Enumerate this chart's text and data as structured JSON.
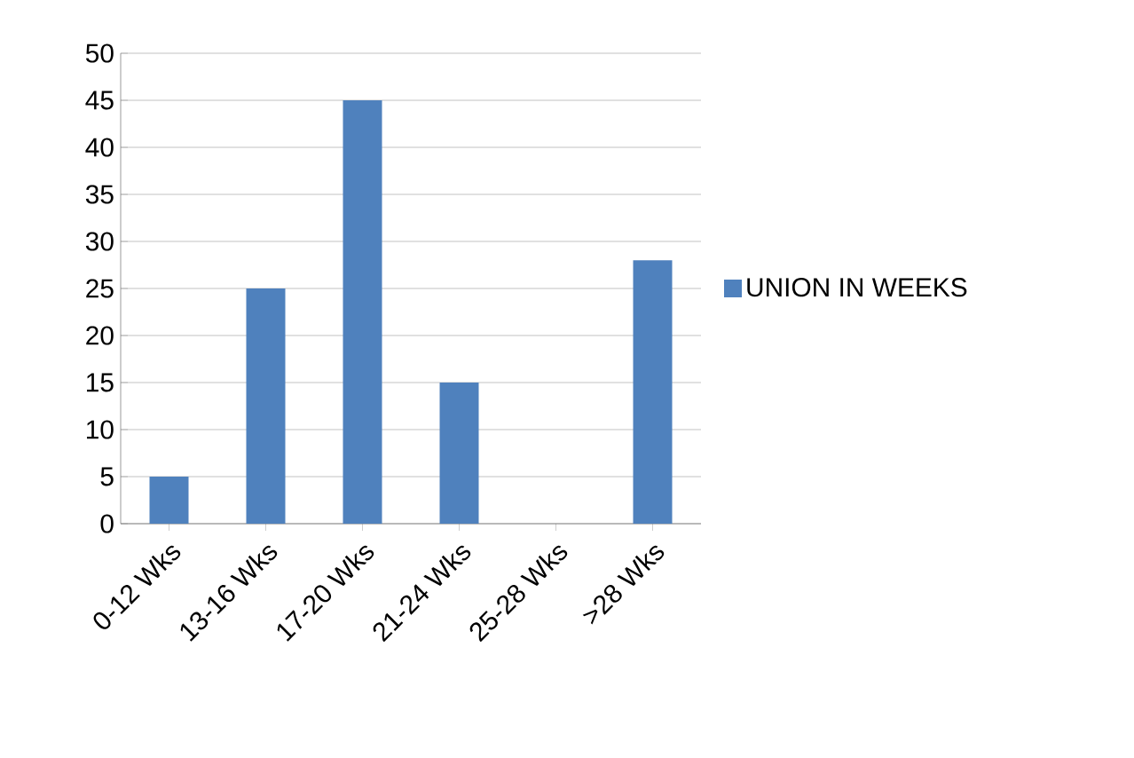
{
  "chart_data": {
    "type": "bar",
    "categories": [
      "0-12 Wks",
      "13-16 Wks",
      "17-20 Wks",
      "21-24 Wks",
      "25-28 Wks",
      ">28 Wks"
    ],
    "series": [
      {
        "name": "UNION IN WEEKS",
        "color": "#4f81bd",
        "values": [
          5,
          25,
          45,
          15,
          0,
          28
        ]
      }
    ],
    "ylim": [
      0,
      50
    ],
    "yticks": [
      0,
      5,
      10,
      15,
      20,
      25,
      30,
      35,
      40,
      45,
      50
    ],
    "grid": "y",
    "legend": "right"
  }
}
